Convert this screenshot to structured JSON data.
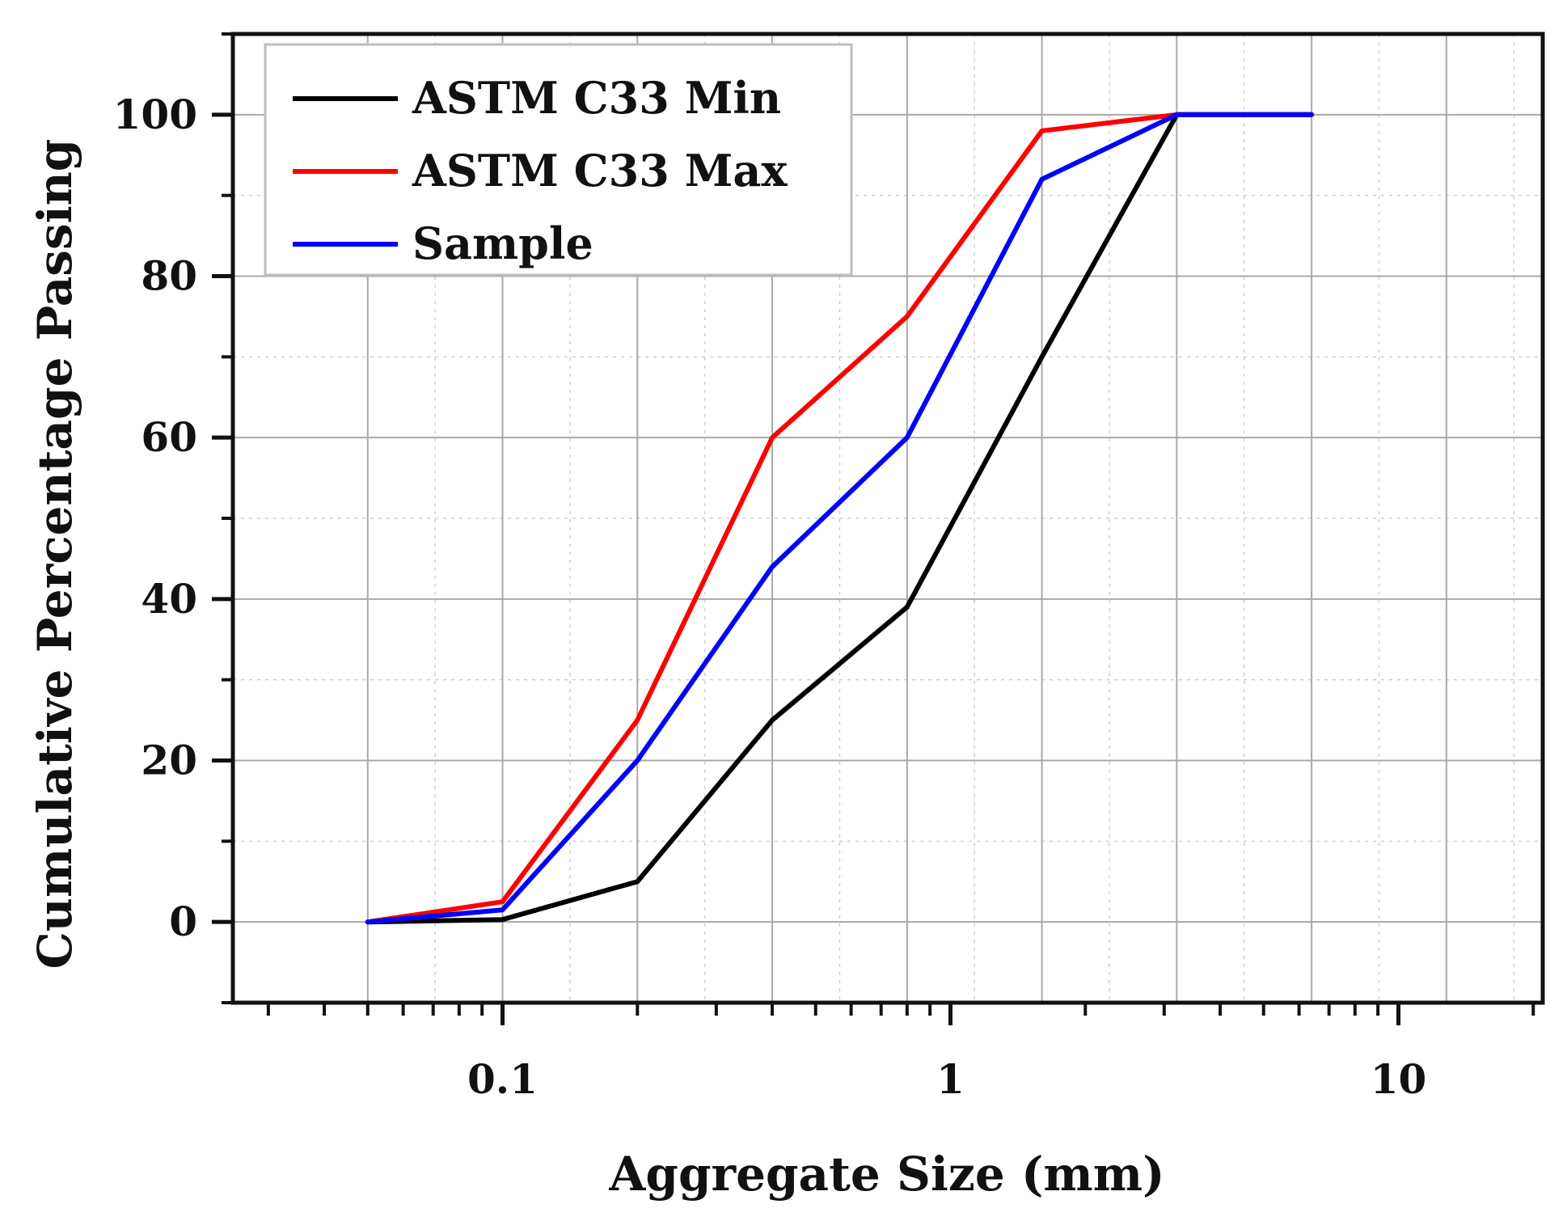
{
  "chart_data": {
    "type": "line",
    "title": "",
    "xlabel": "Aggregate Size (mm)",
    "ylabel": "Cumulative Percentage Passing",
    "xscale": "log",
    "xlim": [
      0.025,
      21
    ],
    "ylim": [
      -10,
      110
    ],
    "xticks": [
      0.1,
      1,
      10
    ],
    "xtick_labels": [
      "0.1",
      "1",
      "10"
    ],
    "yticks": [
      0,
      20,
      40,
      60,
      80,
      100
    ],
    "ytick_labels": [
      "0",
      "20",
      "40",
      "60",
      "80",
      "100"
    ],
    "grid": true,
    "legend_position": "top-left",
    "series": [
      {
        "name": "ASTM C33 Min",
        "color": "#000000",
        "x": [
          0.05,
          0.1,
          0.2,
          0.4,
          0.8,
          1.6,
          3.2,
          6.4
        ],
        "y": [
          0,
          0.3,
          5,
          25,
          39,
          70,
          100,
          100
        ]
      },
      {
        "name": "ASTM C33 Max",
        "color": "#ff0000",
        "x": [
          0.05,
          0.1,
          0.2,
          0.4,
          0.8,
          1.6,
          3.2,
          6.4
        ],
        "y": [
          0,
          2.5,
          25,
          60,
          75,
          98,
          100,
          100
        ]
      },
      {
        "name": "Sample",
        "color": "#0000ff",
        "x": [
          0.05,
          0.1,
          0.2,
          0.4,
          0.8,
          1.6,
          3.2,
          6.4
        ],
        "y": [
          0,
          1.5,
          20,
          44,
          60,
          92,
          100,
          100
        ]
      }
    ]
  }
}
